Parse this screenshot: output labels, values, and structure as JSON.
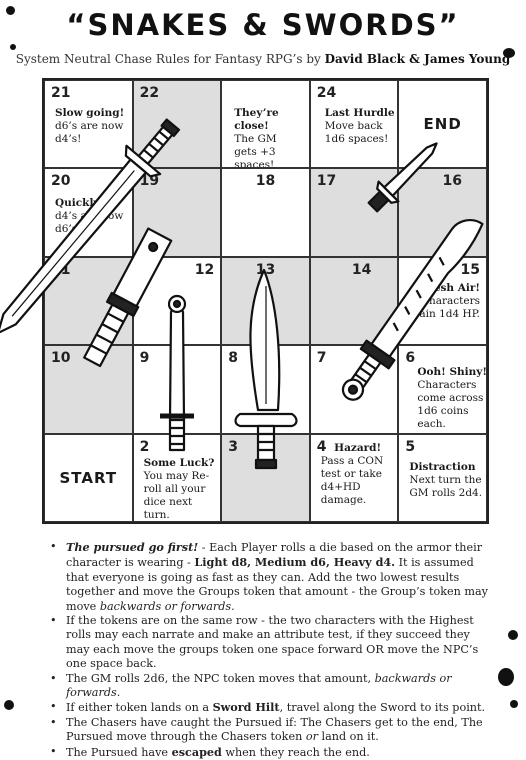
{
  "title": "“SNAKES & SWORDS”",
  "subtitle": {
    "text": "System Neutral Chase Rules for Fantasy RPG’s by ",
    "authors": "David Black & James Young"
  },
  "cells": {
    "c21": {
      "num": "21",
      "title": "Slow going!",
      "text": "d6’s are now d4’s!"
    },
    "c22": {
      "num": "22"
    },
    "c23": {
      "title": "They’re close!",
      "text": "The GM gets +3 spaces!"
    },
    "c24": {
      "num": "24",
      "title": "Last Hurdle",
      "text": "Move back 1d6 spaces!"
    },
    "end": {
      "label": "END"
    },
    "c20": {
      "num": "20",
      "title": "Quickly!",
      "text": "d4’s are now d6’s!"
    },
    "c19": {
      "num": "19"
    },
    "c18": {
      "num": "18"
    },
    "c17": {
      "num": "17"
    },
    "c16": {
      "num": "16"
    },
    "c11": {
      "num": "11"
    },
    "c12": {
      "num": "12"
    },
    "c13": {
      "num": "13"
    },
    "c14": {
      "num": "14"
    },
    "c15": {
      "num": "15",
      "title": "Fresh Air!",
      "text": "Characters gain 1d4 HP."
    },
    "c10": {
      "num": "10"
    },
    "c9": {
      "num": "9"
    },
    "c8": {
      "num": "8"
    },
    "c7": {
      "num": "7"
    },
    "c6": {
      "num": "6",
      "title": "Ooh! Shiny!",
      "text": "Characters come across 1d6 coins each."
    },
    "start": {
      "label": "START"
    },
    "c2": {
      "num": "2",
      "title": "Some Luck?",
      "text": "You may Re-roll all your dice next turn."
    },
    "c3": {
      "num": "3"
    },
    "c4": {
      "num": "4",
      "title": "Hazard!",
      "text": "Pass a CON test or take d4+HD damage."
    },
    "c5": {
      "num": "5",
      "title": "Distraction",
      "text": "Next turn the GM rolls 2d4."
    }
  },
  "rules": [
    {
      "parts": [
        {
          "t": "The pursued go first!",
          "s": "bi"
        },
        {
          "t": " - Each Player rolls a die based on the armor their character is wearing - ",
          "s": ""
        },
        {
          "t": "Light d8, Medium d6, Heavy d4.",
          "s": "b"
        },
        {
          "t": " It is assumed that everyone is going as fast as they can. Add the two lowest results together and move the Groups token that amount - the Group’s token may move ",
          "s": ""
        },
        {
          "t": "backwards or forwards.",
          "s": "i"
        }
      ]
    },
    {
      "parts": [
        {
          "t": "If the tokens are on the same row - the two characters with the Highest rolls may each narrate and make an attribute test, if they succeed they may each move the groups token one space forward OR move the NPC’s one space back.",
          "s": ""
        }
      ]
    },
    {
      "parts": [
        {
          "t": "The GM rolls 2d6, the NPC token moves that amount, ",
          "s": ""
        },
        {
          "t": "backwards or forwards.",
          "s": "i"
        }
      ]
    },
    {
      "parts": [
        {
          "t": "If either token lands on a ",
          "s": ""
        },
        {
          "t": "Sword Hilt",
          "s": "b"
        },
        {
          "t": ", travel along the Sword to its point.",
          "s": ""
        }
      ]
    },
    {
      "parts": [
        {
          "t": "The Chasers have caught the Pursued if: The Chasers get to the end, The Pursued move through the Chasers token ",
          "s": ""
        },
        {
          "t": "or",
          "s": "i"
        },
        {
          "t": " land on it.",
          "s": ""
        }
      ]
    },
    {
      "parts": [
        {
          "t": "The Pursued have ",
          "s": ""
        },
        {
          "t": "escaped",
          "s": "b"
        },
        {
          "t": " when they reach the end.",
          "s": ""
        }
      ]
    }
  ]
}
